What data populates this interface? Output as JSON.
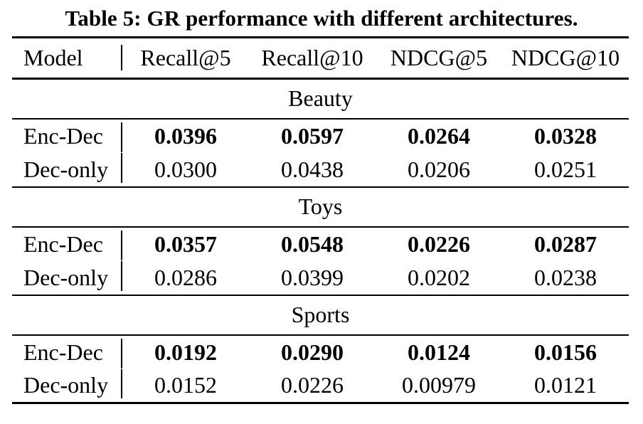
{
  "caption": "Table 5: GR performance with different architectures.",
  "colors": {
    "text": "#000000",
    "background": "#ffffff",
    "rule": "#000000"
  },
  "table": {
    "columns": [
      "Model",
      "Recall@5",
      "Recall@10",
      "NDCG@5",
      "NDCG@10"
    ],
    "sections": [
      {
        "name": "Beauty",
        "rows": [
          {
            "model": "Enc-Dec",
            "best": true,
            "values": [
              "0.0396",
              "0.0597",
              "0.0264",
              "0.0328"
            ]
          },
          {
            "model": "Dec-only",
            "best": false,
            "values": [
              "0.0300",
              "0.0438",
              "0.0206",
              "0.0251"
            ]
          }
        ]
      },
      {
        "name": "Toys",
        "rows": [
          {
            "model": "Enc-Dec",
            "best": true,
            "values": [
              "0.0357",
              "0.0548",
              "0.0226",
              "0.0287"
            ]
          },
          {
            "model": "Dec-only",
            "best": false,
            "values": [
              "0.0286",
              "0.0399",
              "0.0202",
              "0.0238"
            ]
          }
        ]
      },
      {
        "name": "Sports",
        "rows": [
          {
            "model": "Enc-Dec",
            "best": true,
            "values": [
              "0.0192",
              "0.0290",
              "0.0124",
              "0.0156"
            ]
          },
          {
            "model": "Dec-only",
            "best": false,
            "values": [
              "0.0152",
              "0.0226",
              "0.00979",
              "0.0121"
            ]
          }
        ]
      }
    ]
  }
}
